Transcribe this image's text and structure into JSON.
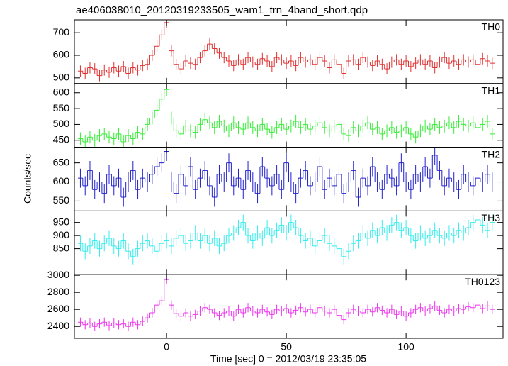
{
  "chart_data": [
    {
      "type": "line",
      "title": "ae406038010_20120319233505_wam1_trn_4band_short.qdp",
      "ylabel": "Counts/sec",
      "label": "TH0",
      "color": "#e03030",
      "yerr": 25,
      "x": [
        -36,
        -34,
        -32,
        -30,
        -28,
        -26,
        -24,
        -22,
        -20,
        -18,
        -16,
        -14,
        -12,
        -10,
        -8,
        -6,
        -4,
        -2,
        0,
        2,
        4,
        6,
        8,
        10,
        12,
        14,
        16,
        18,
        20,
        22,
        24,
        26,
        28,
        30,
        32,
        34,
        36,
        38,
        40,
        42,
        44,
        46,
        48,
        50,
        52,
        54,
        56,
        58,
        60,
        62,
        64,
        66,
        68,
        70,
        72,
        74,
        76,
        78,
        80,
        82,
        84,
        86,
        88,
        90,
        92,
        94,
        96,
        98,
        100,
        102,
        104,
        106,
        108,
        110,
        112,
        114,
        116,
        118,
        120,
        122,
        124,
        126,
        128,
        130,
        132,
        134,
        136
      ],
      "values": [
        530,
        520,
        545,
        540,
        510,
        535,
        525,
        545,
        530,
        550,
        520,
        545,
        535,
        555,
        560,
        600,
        640,
        690,
        745,
        620,
        560,
        540,
        575,
        565,
        560,
        590,
        620,
        650,
        630,
        610,
        590,
        575,
        555,
        580,
        560,
        590,
        570,
        560,
        585,
        575,
        550,
        590,
        580,
        565,
        575,
        555,
        590,
        570,
        580,
        560,
        590,
        575,
        545,
        580,
        560,
        520,
        575,
        580,
        560,
        590,
        570,
        555,
        575,
        560,
        540,
        570,
        580,
        560,
        575,
        550,
        565,
        580,
        560,
        575,
        545,
        570,
        590,
        565,
        575,
        560,
        580,
        570,
        580,
        560,
        585,
        575,
        565
      ],
      "xlim": [
        -38.5,
        140.5
      ],
      "ylim": [
        475,
        757
      ],
      "yticks": [
        500,
        600,
        700
      ]
    },
    {
      "type": "line",
      "label": "TH1",
      "color": "#33ee33",
      "yerr": 20,
      "x": [
        -36,
        -34,
        -32,
        -30,
        -28,
        -26,
        -24,
        -22,
        -20,
        -18,
        -16,
        -14,
        -12,
        -10,
        -8,
        -6,
        -4,
        -2,
        0,
        2,
        4,
        6,
        8,
        10,
        12,
        14,
        16,
        18,
        20,
        22,
        24,
        26,
        28,
        30,
        32,
        34,
        36,
        38,
        40,
        42,
        44,
        46,
        48,
        50,
        52,
        54,
        56,
        58,
        60,
        62,
        64,
        66,
        68,
        70,
        72,
        74,
        76,
        78,
        80,
        82,
        84,
        86,
        88,
        90,
        92,
        94,
        96,
        98,
        100,
        102,
        104,
        106,
        108,
        110,
        112,
        114,
        116,
        118,
        120,
        122,
        124,
        126,
        128,
        130,
        132,
        134,
        136
      ],
      "values": [
        455,
        445,
        460,
        450,
        465,
        470,
        460,
        455,
        470,
        445,
        465,
        455,
        475,
        470,
        500,
        520,
        545,
        580,
        610,
        520,
        480,
        470,
        495,
        480,
        475,
        500,
        515,
        505,
        490,
        510,
        495,
        480,
        505,
        490,
        485,
        505,
        490,
        480,
        500,
        485,
        475,
        490,
        500,
        485,
        495,
        510,
        490,
        500,
        485,
        495,
        505,
        490,
        480,
        495,
        500,
        470,
        465,
        490,
        480,
        495,
        505,
        485,
        490,
        470,
        480,
        490,
        475,
        480,
        490,
        470,
        460,
        480,
        495,
        485,
        500,
        490,
        495,
        505,
        490,
        510,
        500,
        495,
        505,
        490,
        500,
        510,
        470
      ],
      "xlim": [
        -38.5,
        140.5
      ],
      "ylim": [
        428,
        629
      ],
      "yticks": [
        450,
        500,
        550,
        600
      ]
    },
    {
      "type": "line",
      "label": "TH2",
      "color": "#2020cc",
      "yerr": 25,
      "x": [
        -36,
        -34,
        -32,
        -30,
        -28,
        -26,
        -24,
        -22,
        -20,
        -18,
        -16,
        -14,
        -12,
        -10,
        -8,
        -6,
        -4,
        -2,
        0,
        2,
        4,
        6,
        8,
        10,
        12,
        14,
        16,
        18,
        20,
        22,
        24,
        26,
        28,
        30,
        32,
        34,
        36,
        38,
        40,
        42,
        44,
        46,
        48,
        50,
        52,
        54,
        56,
        58,
        60,
        62,
        64,
        66,
        68,
        70,
        72,
        74,
        76,
        78,
        80,
        82,
        84,
        86,
        88,
        90,
        92,
        94,
        96,
        98,
        100,
        102,
        104,
        106,
        108,
        110,
        112,
        114,
        116,
        118,
        120,
        122,
        124,
        126,
        128,
        130,
        132,
        134,
        136
      ],
      "values": [
        610,
        590,
        630,
        580,
        600,
        570,
        620,
        590,
        610,
        560,
        600,
        630,
        580,
        610,
        600,
        620,
        640,
        650,
        680,
        600,
        570,
        620,
        590,
        640,
        580,
        610,
        630,
        590,
        560,
        620,
        600,
        650,
        590,
        610,
        580,
        630,
        600,
        570,
        640,
        610,
        590,
        620,
        580,
        650,
        600,
        570,
        610,
        630,
        590,
        600,
        640,
        580,
        610,
        590,
        620,
        570,
        600,
        630,
        560,
        610,
        590,
        640,
        600,
        580,
        620,
        610,
        590,
        650,
        600,
        580,
        620,
        600,
        640,
        610,
        670,
        630,
        590,
        610,
        600,
        580,
        620,
        600,
        590,
        610,
        600,
        620,
        600
      ],
      "xlim": [
        -38.5,
        140.5
      ],
      "ylim": [
        524,
        691
      ],
      "yticks": [
        550,
        600,
        650
      ]
    },
    {
      "type": "line",
      "label": "TH3",
      "color": "#33eeee",
      "yerr": 30,
      "x": [
        -36,
        -34,
        -32,
        -30,
        -28,
        -26,
        -24,
        -22,
        -20,
        -18,
        -16,
        -14,
        -12,
        -10,
        -8,
        -6,
        -4,
        -2,
        0,
        2,
        4,
        6,
        8,
        10,
        12,
        14,
        16,
        18,
        20,
        22,
        24,
        26,
        28,
        30,
        32,
        34,
        36,
        38,
        40,
        42,
        44,
        46,
        48,
        50,
        52,
        54,
        56,
        58,
        60,
        62,
        64,
        66,
        68,
        70,
        72,
        74,
        76,
        78,
        80,
        82,
        84,
        86,
        88,
        90,
        92,
        94,
        96,
        98,
        100,
        102,
        104,
        106,
        108,
        110,
        112,
        114,
        116,
        118,
        120,
        122,
        124,
        126,
        128,
        130,
        132,
        134,
        136
      ],
      "values": [
        870,
        840,
        860,
        880,
        850,
        870,
        890,
        860,
        850,
        880,
        840,
        820,
        850,
        870,
        880,
        860,
        840,
        870,
        880,
        860,
        890,
        900,
        870,
        880,
        910,
        880,
        900,
        870,
        890,
        860,
        870,
        900,
        910,
        930,
        950,
        900,
        880,
        910,
        890,
        930,
        900,
        920,
        940,
        910,
        950,
        930,
        900,
        880,
        890,
        860,
        880,
        900,
        870,
        860,
        850,
        820,
        840,
        870,
        880,
        910,
        890,
        920,
        900,
        930,
        910,
        940,
        950,
        920,
        930,
        900,
        880,
        910,
        890,
        900,
        920,
        900,
        890,
        910,
        900,
        920,
        910,
        930,
        950,
        960,
        940,
        920,
        950
      ],
      "xlim": [
        -38.5,
        140.5
      ],
      "ylim": [
        751,
        994
      ],
      "yticks": [
        850,
        900,
        950
      ]
    },
    {
      "type": "line",
      "label": "TH0123",
      "xlabel": "Time [sec] 0 = 2012/03/19 23:35:05",
      "color": "#ee33ee",
      "yerr": 55,
      "x": [
        -36,
        -34,
        -32,
        -30,
        -28,
        -26,
        -24,
        -22,
        -20,
        -18,
        -16,
        -14,
        -12,
        -10,
        -8,
        -6,
        -4,
        -2,
        0,
        2,
        4,
        6,
        8,
        10,
        12,
        14,
        16,
        18,
        20,
        22,
        24,
        26,
        28,
        30,
        32,
        34,
        36,
        38,
        40,
        42,
        44,
        46,
        48,
        50,
        52,
        54,
        56,
        58,
        60,
        62,
        64,
        66,
        68,
        70,
        72,
        74,
        76,
        78,
        80,
        82,
        84,
        86,
        88,
        90,
        92,
        94,
        96,
        98,
        100,
        102,
        104,
        106,
        108,
        110,
        112,
        114,
        116,
        118,
        120,
        122,
        124,
        126,
        128,
        130,
        132,
        134,
        136
      ],
      "values": [
        2450,
        2420,
        2440,
        2400,
        2430,
        2450,
        2410,
        2440,
        2420,
        2430,
        2400,
        2450,
        2420,
        2460,
        2500,
        2560,
        2650,
        2700,
        2950,
        2650,
        2550,
        2520,
        2560,
        2520,
        2540,
        2580,
        2620,
        2600,
        2560,
        2530,
        2560,
        2580,
        2520,
        2600,
        2560,
        2620,
        2580,
        2560,
        2600,
        2570,
        2540,
        2600,
        2580,
        2610,
        2560,
        2590,
        2620,
        2570,
        2600,
        2560,
        2620,
        2580,
        2560,
        2600,
        2530,
        2480,
        2560,
        2600,
        2580,
        2560,
        2600,
        2570,
        2620,
        2590,
        2560,
        2600,
        2540,
        2580,
        2520,
        2560,
        2600,
        2620,
        2580,
        2610,
        2640,
        2590,
        2560,
        2600,
        2580,
        2610,
        2600,
        2630,
        2620,
        2650,
        2610,
        2640,
        2600
      ],
      "xlim": [
        -38.5,
        140.5
      ],
      "ylim": [
        2260,
        3008
      ],
      "yticks": [
        2400,
        2600,
        2800,
        3000
      ],
      "xticks": [
        0,
        50,
        100
      ]
    }
  ]
}
